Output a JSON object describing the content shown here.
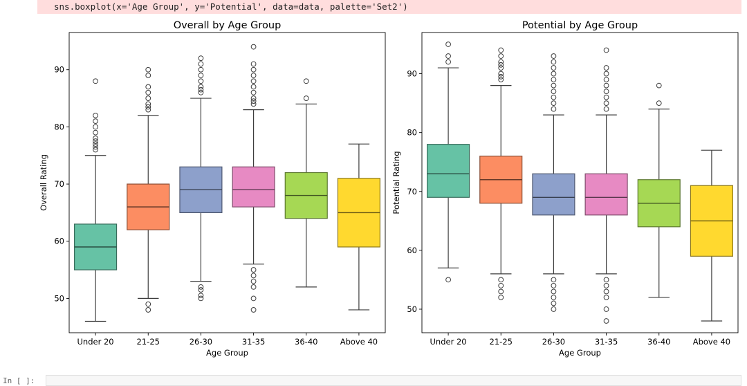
{
  "notebook": {
    "code_line": "sns.boxplot(x='Age Group', y='Potential', data=data, palette='Set2')",
    "next_prompt": "In [ ]:"
  },
  "chart_data": [
    {
      "type": "box",
      "title": "Overall by Age Group",
      "xlabel": "Age Group",
      "ylabel": "Overall Rating",
      "categories": [
        "Under 20",
        "21-25",
        "26-30",
        "31-35",
        "36-40",
        "Above 40"
      ],
      "colors": [
        "#66c2a5",
        "#fc8d62",
        "#8da0cb",
        "#e78ac3",
        "#a6d854",
        "#ffd92f"
      ],
      "ylim": [
        44,
        96.5
      ],
      "yticks": [
        50,
        60,
        70,
        80,
        90
      ],
      "grid": false,
      "boxes": [
        {
          "q1": 55,
          "median": 59,
          "q3": 63,
          "whisker_low": 46,
          "whisker_high": 75,
          "outliers": [
            76,
            76.5,
            77,
            77.5,
            78,
            79,
            80,
            81,
            82,
            88
          ]
        },
        {
          "q1": 62,
          "median": 66,
          "q3": 70,
          "whisker_low": 50,
          "whisker_high": 82,
          "outliers": [
            48,
            49,
            83,
            83.5,
            84,
            85,
            86,
            87,
            89,
            90
          ]
        },
        {
          "q1": 65,
          "median": 69,
          "q3": 73,
          "whisker_low": 53,
          "whisker_high": 85,
          "outliers": [
            50,
            50.5,
            51.5,
            52,
            86,
            86.5,
            87,
            88,
            89,
            90,
            91,
            92
          ]
        },
        {
          "q1": 66,
          "median": 69,
          "q3": 73,
          "whisker_low": 56,
          "whisker_high": 83,
          "outliers": [
            48,
            50,
            52,
            53,
            54,
            55,
            84,
            84.5,
            85,
            86,
            87,
            88,
            89,
            90,
            91,
            94
          ]
        },
        {
          "q1": 64,
          "median": 68,
          "q3": 72,
          "whisker_low": 52,
          "whisker_high": 84,
          "outliers": [
            85,
            88
          ]
        },
        {
          "q1": 59,
          "median": 65,
          "q3": 71,
          "whisker_low": 48,
          "whisker_high": 77,
          "outliers": []
        }
      ]
    },
    {
      "type": "box",
      "title": "Potential by Age Group",
      "xlabel": "Age Group",
      "ylabel": "Potential Rating",
      "categories": [
        "Under 20",
        "21-25",
        "26-30",
        "31-35",
        "36-40",
        "Above 40"
      ],
      "colors": [
        "#66c2a5",
        "#fc8d62",
        "#8da0cb",
        "#e78ac3",
        "#a6d854",
        "#ffd92f"
      ],
      "ylim": [
        46,
        97
      ],
      "yticks": [
        50,
        60,
        70,
        80,
        90
      ],
      "grid": false,
      "boxes": [
        {
          "q1": 69,
          "median": 73,
          "q3": 78,
          "whisker_low": 57,
          "whisker_high": 91,
          "outliers": [
            55,
            92,
            93,
            95
          ]
        },
        {
          "q1": 68,
          "median": 72,
          "q3": 76,
          "whisker_low": 56,
          "whisker_high": 88,
          "outliers": [
            52,
            53,
            54,
            55,
            89,
            89.5,
            90,
            91,
            91.5,
            92,
            93,
            94
          ]
        },
        {
          "q1": 66,
          "median": 69,
          "q3": 73,
          "whisker_low": 56,
          "whisker_high": 83,
          "outliers": [
            50,
            51,
            52,
            53,
            54,
            55,
            84,
            85,
            86,
            87,
            88,
            89,
            90,
            91,
            92,
            93
          ]
        },
        {
          "q1": 66,
          "median": 69,
          "q3": 73,
          "whisker_low": 56,
          "whisker_high": 83,
          "outliers": [
            48,
            50,
            52,
            53,
            54,
            55,
            84,
            85,
            86,
            87,
            88,
            89,
            90,
            91,
            94
          ]
        },
        {
          "q1": 64,
          "median": 68,
          "q3": 72,
          "whisker_low": 52,
          "whisker_high": 84,
          "outliers": [
            85,
            88
          ]
        },
        {
          "q1": 59,
          "median": 65,
          "q3": 71,
          "whisker_low": 48,
          "whisker_high": 77,
          "outliers": []
        }
      ]
    }
  ]
}
